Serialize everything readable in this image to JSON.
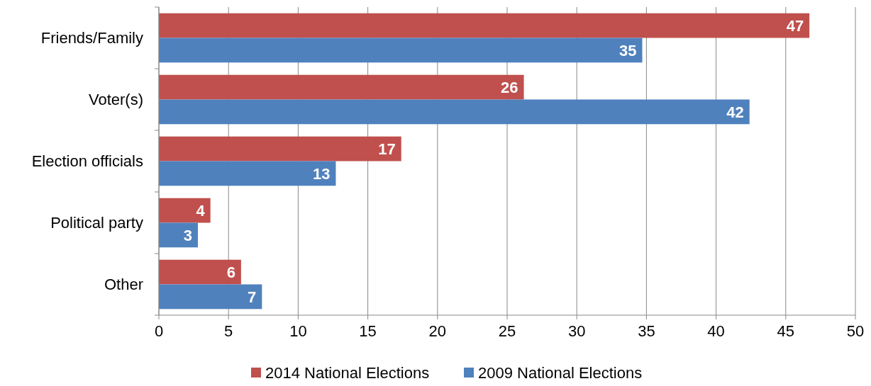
{
  "chart_data": {
    "type": "bar",
    "orientation": "horizontal",
    "categories": [
      "Friends/Family",
      "Voter(s)",
      "Election officials",
      "Political party",
      "Other"
    ],
    "series": [
      {
        "name": "2014 National Elections",
        "color": "#c0504d",
        "values": [
          46.7,
          26.2,
          17.4,
          3.7,
          5.9
        ],
        "value_labels": [
          "47",
          "26",
          "17",
          "4",
          "6"
        ]
      },
      {
        "name": "2009 National Elections",
        "color": "#4f81bd",
        "values": [
          34.7,
          42.4,
          12.7,
          2.8,
          7.4
        ],
        "value_labels": [
          "35",
          "42",
          "13",
          "3",
          "7"
        ]
      }
    ],
    "xlim": [
      0,
      50
    ],
    "xticks": [
      0,
      5,
      10,
      15,
      20,
      25,
      30,
      35,
      40,
      45,
      50
    ],
    "grid": "x",
    "legend": "bottom"
  }
}
